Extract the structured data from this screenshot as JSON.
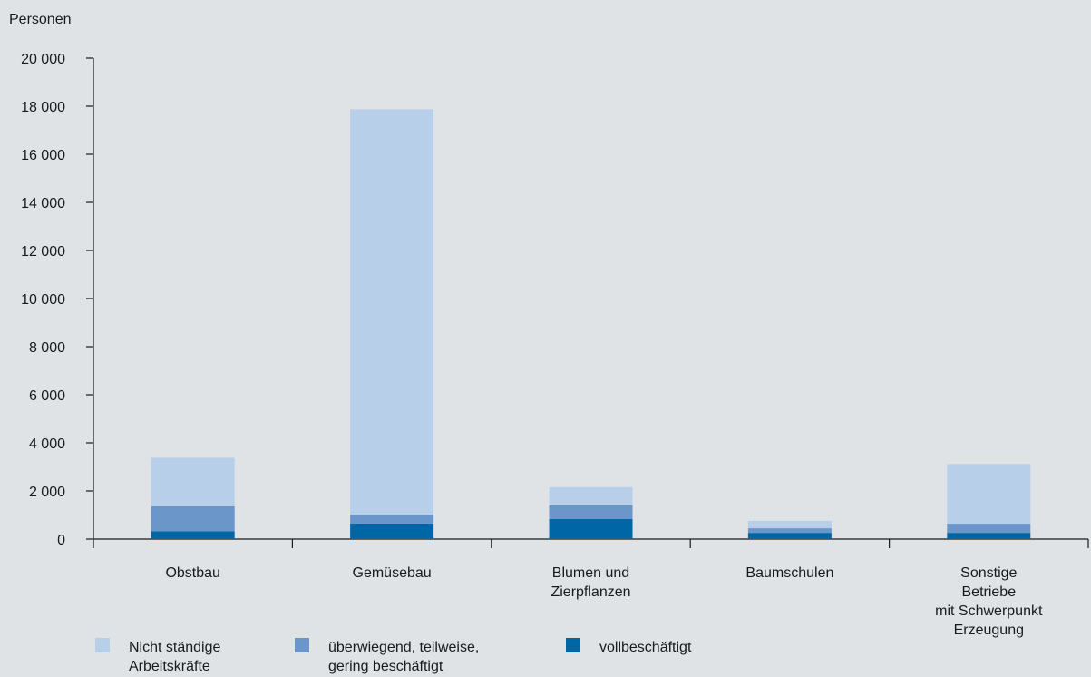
{
  "chart_data": {
    "type": "bar",
    "stacked": true,
    "ylabel": "Personen",
    "ylim": [
      0,
      20000
    ],
    "yticks": [
      0,
      2000,
      4000,
      6000,
      8000,
      10000,
      12000,
      14000,
      16000,
      18000,
      20000
    ],
    "ytick_labels": [
      "0",
      "2 000",
      "4 000",
      "6 000",
      "8 000",
      "10 000",
      "12 000",
      "14 000",
      "16 000",
      "18 000",
      "20 000"
    ],
    "categories": [
      [
        "Obstbau"
      ],
      [
        "Gemüsebau"
      ],
      [
        "Blumen und",
        "Zierpflanzen"
      ],
      [
        "Baumschulen"
      ],
      [
        "Sonstige",
        "Betriebe",
        "mit Schwerpunkt",
        "Erzeugung"
      ]
    ],
    "series": [
      {
        "name": "vollbeschäftigt",
        "color": "#0066a6",
        "values": [
          330,
          650,
          830,
          260,
          260
        ]
      },
      {
        "name": "überwiegend, teilweise, gering beschäftigt",
        "legend_lines": [
          "überwiegend, teilweise,",
          "gering beschäftigt"
        ],
        "color": "#6b96c9",
        "values": [
          1030,
          370,
          580,
          190,
          380
        ]
      },
      {
        "name": "Nicht ständige Arbeitskräfte",
        "legend_lines": [
          "Nicht ständige",
          "Arbeitskräfte"
        ],
        "color": "#b8cfe9",
        "values": [
          2020,
          16850,
          750,
          310,
          2480
        ]
      }
    ],
    "legend": {
      "placement": "bottom-left",
      "order": [
        2,
        1,
        0
      ]
    },
    "grid": false
  }
}
